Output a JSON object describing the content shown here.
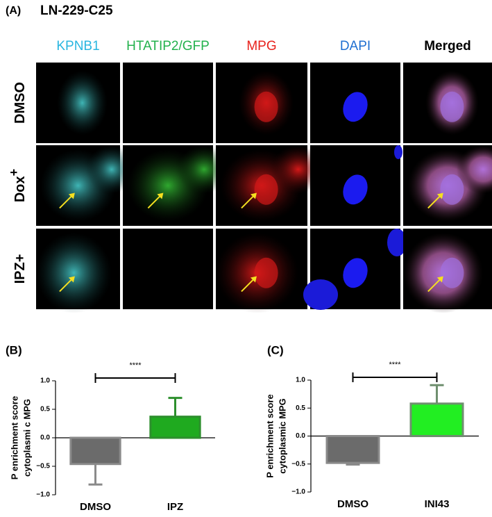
{
  "panel_a": {
    "label": "(A)",
    "title": "LN-229-C25",
    "columns": [
      {
        "name": "KPNB1",
        "color": "#29b6e0"
      },
      {
        "name": "HTATIP2/GFP",
        "color": "#22b14c"
      },
      {
        "name": "MPG",
        "color": "#e8221c"
      },
      {
        "name": "DAPI",
        "color": "#1f6fd1"
      },
      {
        "name": "Merged",
        "color": "#000000"
      }
    ],
    "rows": [
      {
        "text": "DMSO"
      },
      {
        "text": "Dox",
        "sup": "+"
      },
      {
        "text": "IPZ+"
      }
    ]
  },
  "chart_data": [
    {
      "type": "bar",
      "label": "(B)",
      "y_label": [
        "P enrichment score",
        "cytoplasmi c MPG"
      ],
      "categories": [
        "DMSO",
        "IPZ"
      ],
      "values": [
        -0.46,
        0.37
      ],
      "errors": [
        0.36,
        0.33
      ],
      "colors": [
        "#6b6b6b",
        "#1faa1f"
      ],
      "edge_colors": [
        "#8a8a8a",
        "#2d8f2d"
      ],
      "significance": "****",
      "ylim": [
        -1,
        1
      ],
      "yticks": [
        {
          "value": 1,
          "label": "1.0"
        },
        {
          "value": 0.5,
          "label": "0.5"
        },
        {
          "value": 0,
          "label": "0.0"
        },
        {
          "value": -0.5,
          "label": "−0.5"
        },
        {
          "value": -1,
          "label": "−1.0"
        }
      ]
    },
    {
      "type": "bar",
      "label": "(C)",
      "y_label": [
        "P enrichment score",
        "cytoplasmic  MPG"
      ],
      "categories": [
        "DMSO",
        "INI43"
      ],
      "values": [
        -0.48,
        0.58
      ],
      "errors": [
        0.03,
        0.33
      ],
      "colors": [
        "#6b6b6b",
        "#22ee22"
      ],
      "edge_colors": [
        "#8a8a8a",
        "#6f8f6f"
      ],
      "significance": "****",
      "ylim": [
        -1,
        1
      ],
      "yticks": [
        {
          "value": 1,
          "label": "1.0"
        },
        {
          "value": 0.5,
          "label": "0.5"
        },
        {
          "value": 0,
          "label": "0.0"
        },
        {
          "value": -0.5,
          "label": "−0.5"
        },
        {
          "value": -1,
          "label": "−1.0"
        }
      ]
    }
  ]
}
